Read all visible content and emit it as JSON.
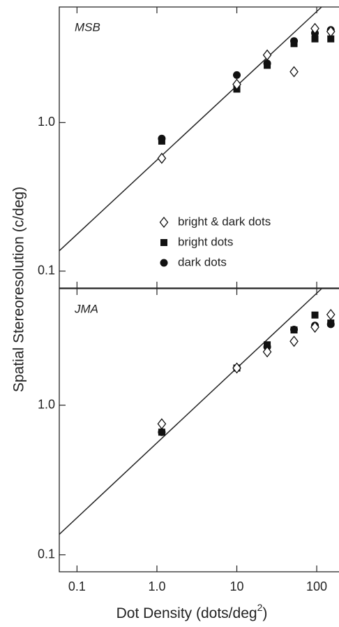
{
  "ylabel": "Spatial Stereoresolution (c/deg)",
  "xlabel": [
    "Dot Density (dots/deg",
    "2",
    ")"
  ],
  "chart_data": [
    {
      "type": "scatter",
      "panel_label": "MSB",
      "x_scale": "log",
      "y_scale": "log",
      "xlim": [
        0.06,
        190
      ],
      "ylim": [
        0.077,
        6
      ],
      "xticks": [
        {
          "value": 0.1,
          "label": "0.1"
        },
        {
          "value": 1,
          "label": "1.0"
        },
        10,
        100
      ],
      "yticks": [
        {
          "value": 0.1,
          "label": "0.1"
        },
        {
          "value": 1,
          "label": "1.0"
        }
      ],
      "legend": "lower right",
      "fit_line": {
        "x": [
          0.06,
          115
        ],
        "y": [
          0.137,
          6.0
        ],
        "color": "#222"
      },
      "x": [
        1.15,
        10,
        24,
        52,
        95,
        150
      ],
      "series": [
        {
          "name": "bright & dark dots",
          "marker": "diamond",
          "color": "#ffffff",
          "values": [
            0.575,
            1.81,
            2.85,
            2.2,
            4.3,
            4.1
          ]
        },
        {
          "name": "bright dots",
          "marker": "square",
          "color": "#111111",
          "values": [
            0.75,
            1.68,
            2.43,
            3.4,
            3.66,
            3.66
          ]
        },
        {
          "name": "dark dots",
          "marker": "circle",
          "color": "#111111",
          "values": [
            0.78,
            2.09,
            2.5,
            3.54,
            4.0,
            4.2
          ]
        }
      ]
    },
    {
      "type": "scatter",
      "panel_label": "JMA",
      "x_scale": "log",
      "y_scale": "log",
      "xlim": [
        0.06,
        190
      ],
      "ylim": [
        0.077,
        6
      ],
      "xticks": [
        {
          "value": 0.1,
          "label": "0.1"
        },
        {
          "value": 1,
          "label": "1.0"
        },
        10,
        100
      ],
      "yticks": [
        {
          "value": 0.1,
          "label": "0.1"
        },
        {
          "value": 1,
          "label": "1.0"
        }
      ],
      "fit_line": {
        "x": [
          0.06,
          115
        ],
        "y": [
          0.137,
          6.0
        ],
        "color": "#222"
      },
      "x": [
        1.15,
        10,
        24,
        52,
        95,
        150
      ],
      "series": [
        {
          "marker": "diamond",
          "color": "#ffffff",
          "values": [
            0.75,
            1.77,
            2.27,
            2.67,
            3.32,
            4.03
          ]
        },
        {
          "marker": "square",
          "color": "#111111",
          "values": [
            0.66,
            1.77,
            2.53,
            3.18,
            4.0,
            3.54
          ]
        },
        {
          "marker": "circle",
          "color": "#111111",
          "values": [
            0.66,
            1.77,
            2.45,
            3.2,
            3.4,
            3.47
          ]
        }
      ]
    }
  ]
}
